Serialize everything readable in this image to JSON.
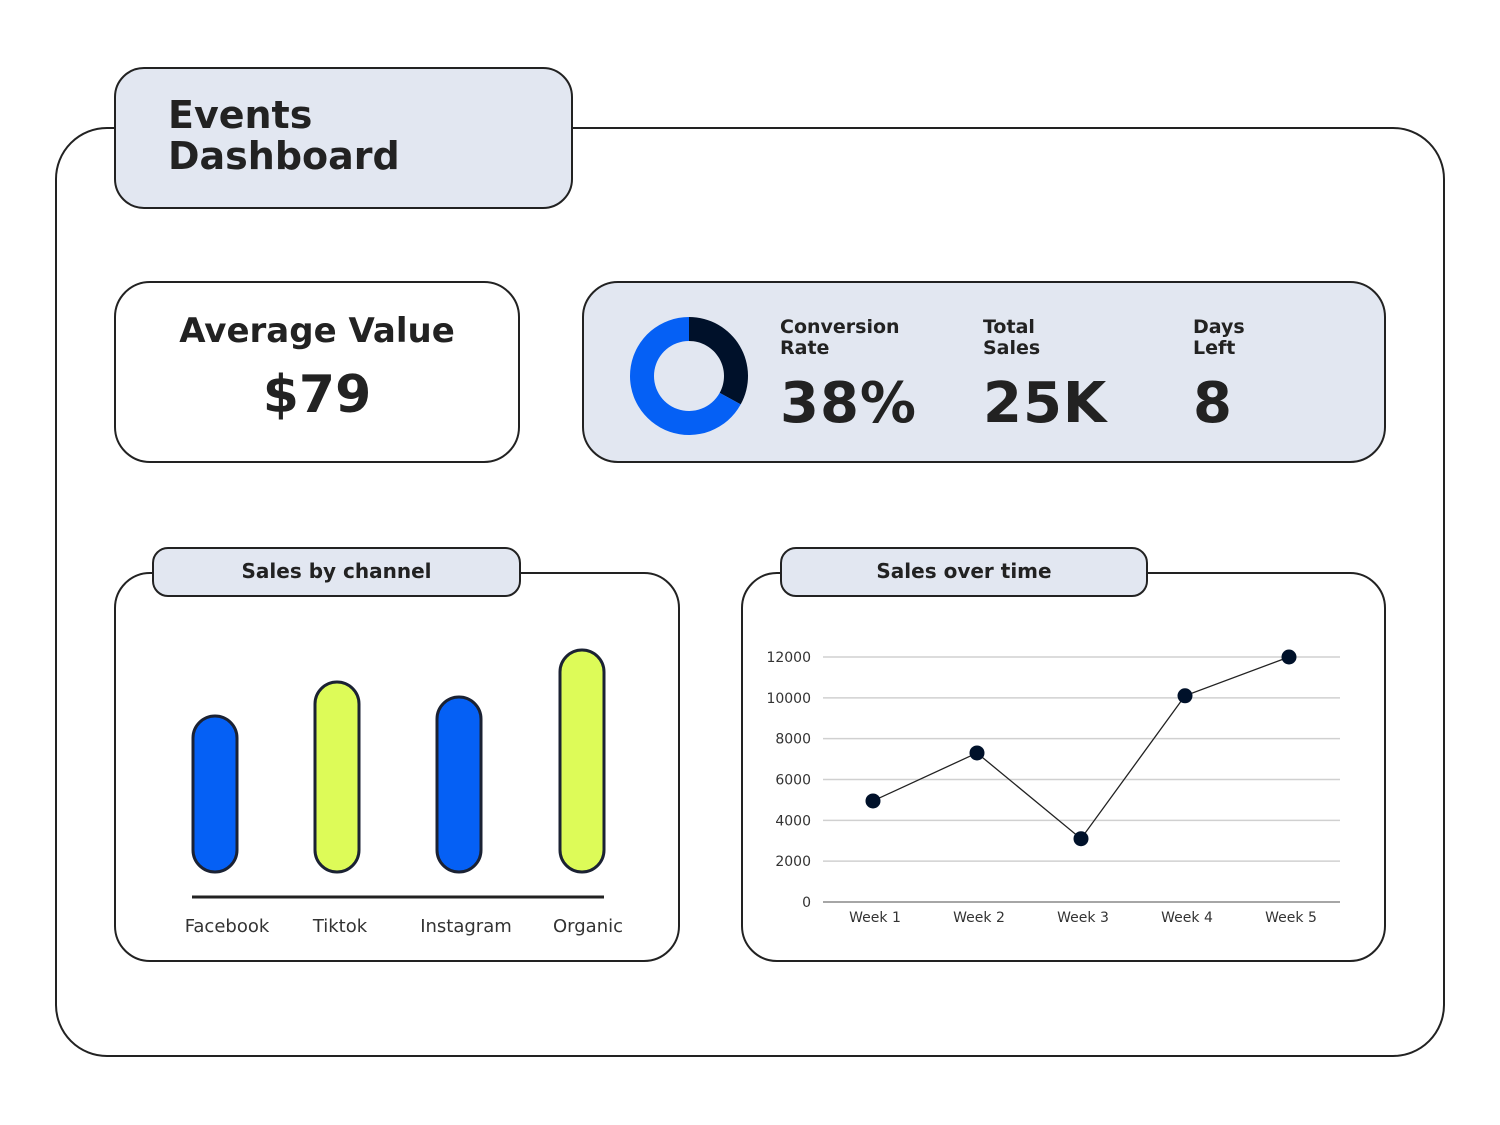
{
  "header": {
    "title_line1": "Events",
    "title_line2": "Dashboard"
  },
  "average": {
    "label": "Average Value",
    "value": "$79"
  },
  "stats": [
    {
      "label_line1": "Conversion",
      "label_line2": "Rate",
      "value": "38%"
    },
    {
      "label_line1": "Total",
      "label_line2": "Sales",
      "value": "25K"
    },
    {
      "label_line1": "Days",
      "label_line2": "Left",
      "value": "8"
    }
  ],
  "colors": {
    "blue": "#0560f5",
    "lime": "#ddfb58",
    "navy": "#00112a",
    "panel_fill": "#e2e7f1",
    "outline": "#222222"
  },
  "chart_data": [
    {
      "type": "pie",
      "variant": "donut",
      "slices": [
        {
          "value": 0.33,
          "color": "#00112a"
        },
        {
          "value": 0.67,
          "color": "#0560f5"
        }
      ]
    },
    {
      "type": "bar",
      "title": "Sales by channel",
      "categories": [
        "Facebook",
        "Tiktok",
        "Instagram",
        "Organic"
      ],
      "values": [
        156,
        190,
        175,
        222
      ],
      "colors": [
        "#0560f5",
        "#ddfb58",
        "#0560f5",
        "#ddfb58"
      ],
      "axis_ticks": false,
      "grid": false
    },
    {
      "type": "line",
      "title": "Sales over time",
      "categories": [
        "Week 1",
        "Week 2",
        "Week 3",
        "Week 4",
        "Week 5"
      ],
      "values": [
        4950,
        7300,
        3100,
        10100,
        12000
      ],
      "ylim": [
        0,
        12000
      ],
      "yticks": [
        "0",
        "2000",
        "4000",
        "6000",
        "8000",
        "10000",
        "12000"
      ],
      "grid": true
    }
  ]
}
